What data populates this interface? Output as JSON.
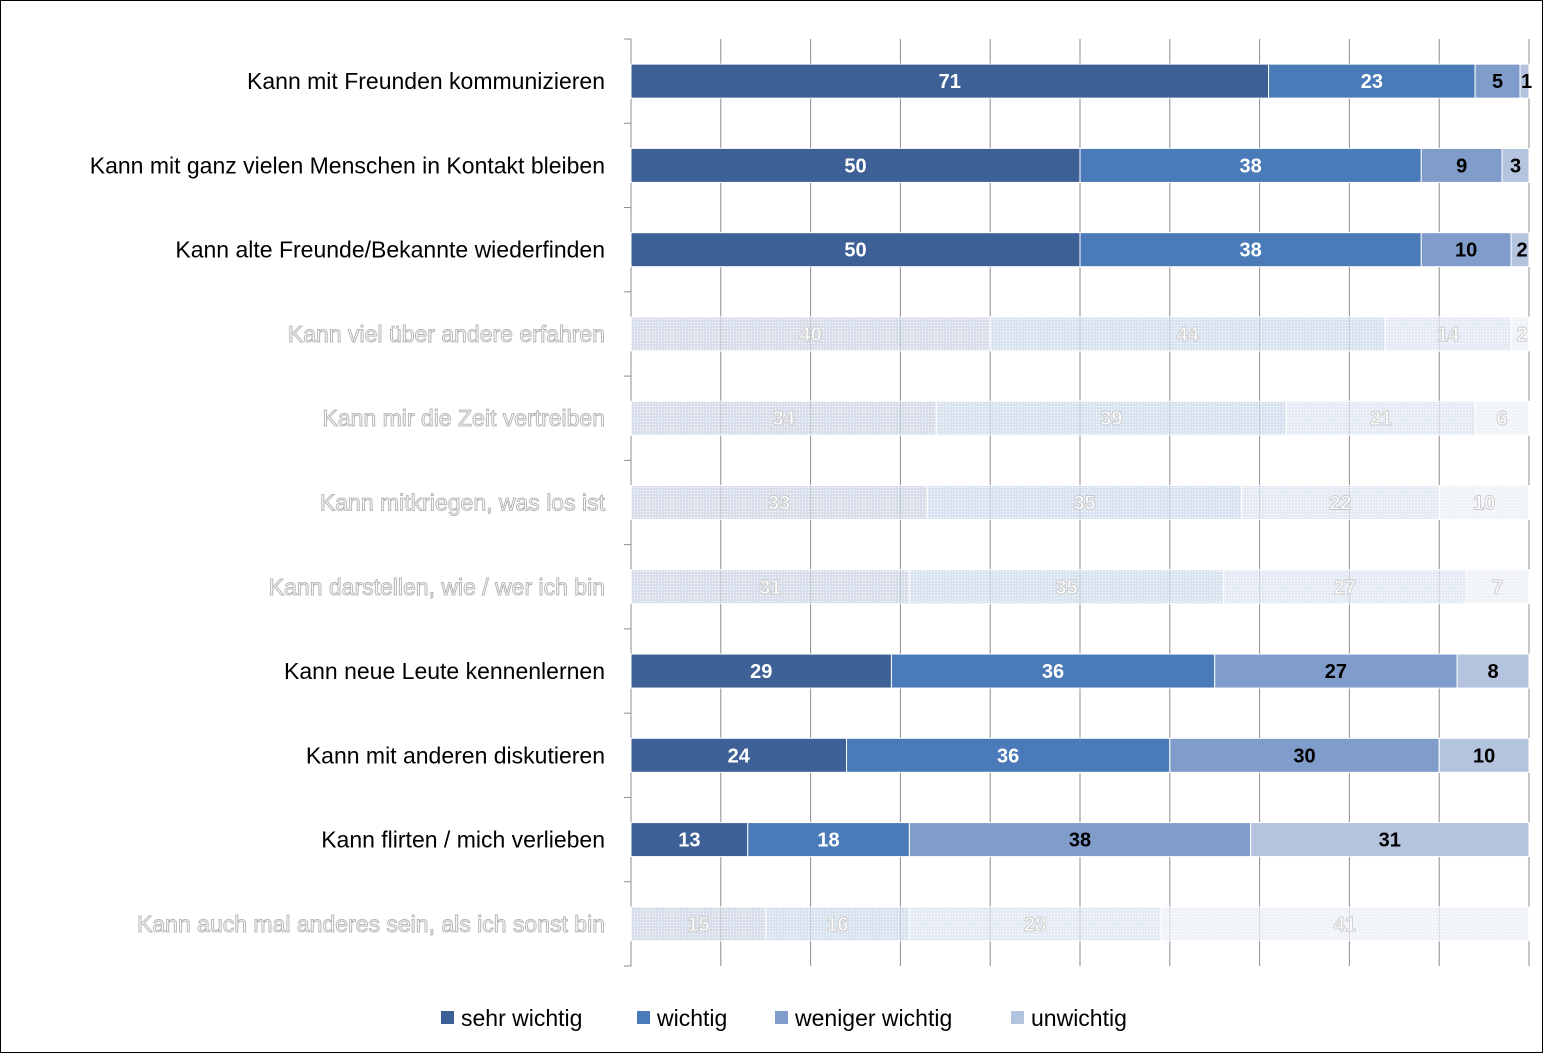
{
  "chart_data": {
    "type": "bar",
    "orientation": "horizontal",
    "stacked": true,
    "xlim": [
      0,
      100
    ],
    "grid": true,
    "legend_position": "bottom",
    "categories": [
      "Kann mit Freunden kommunizieren",
      "Kann mit ganz vielen Menschen in Kontakt bleiben",
      "Kann alte Freunde/Bekannte wiederfinden",
      "Kann viel über andere erfahren",
      "Kann mir die Zeit vertreiben",
      "Kann mitkriegen, was los ist",
      "Kann darstellen, wie / wer ich bin",
      "Kann neue Leute kennenlernen",
      "Kann mit anderen diskutieren",
      "Kann flirten / mich verlieben",
      "Kann auch mal anderes sein, als ich sonst bin"
    ],
    "highlighted": [
      true,
      true,
      true,
      false,
      false,
      false,
      false,
      true,
      true,
      true,
      false
    ],
    "series": [
      {
        "name": "sehr wichtig",
        "color": "#3d6196",
        "values": [
          71,
          50,
          50,
          40,
          34,
          33,
          31,
          29,
          24,
          13,
          15
        ]
      },
      {
        "name": "wichtig",
        "color": "#4a7ab8",
        "values": [
          23,
          38,
          38,
          44,
          39,
          35,
          35,
          36,
          36,
          18,
          16
        ]
      },
      {
        "name": "weniger wichtig",
        "color": "#7f9ccb",
        "values": [
          5,
          9,
          10,
          14,
          21,
          22,
          27,
          27,
          30,
          38,
          28
        ]
      },
      {
        "name": "unwichtig",
        "color": "#b4c3de",
        "values": [
          1,
          3,
          2,
          2,
          6,
          10,
          7,
          8,
          10,
          31,
          41
        ]
      }
    ]
  }
}
